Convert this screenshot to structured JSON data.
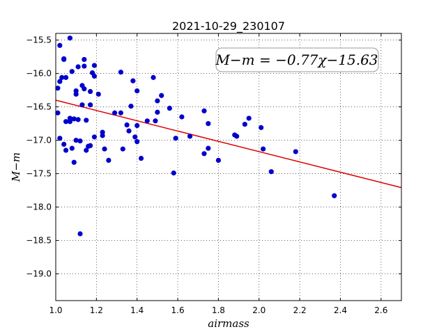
{
  "chart_data": {
    "type": "scatter",
    "title": "2021-10-29_230107",
    "xlabel": "airmass",
    "ylabel": "M−m",
    "xlim": [
      1.0,
      2.7
    ],
    "ylim": [
      -19.4,
      -15.4
    ],
    "y_inverted": true,
    "grid": true,
    "xticks": [
      "1.0",
      "1.2",
      "1.4",
      "1.6",
      "1.8",
      "2.0",
      "2.2",
      "2.4",
      "2.6"
    ],
    "xtick_values": [
      1.0,
      1.2,
      1.4,
      1.6,
      1.8,
      2.0,
      2.2,
      2.4,
      2.6
    ],
    "yticks": [
      "−15.5",
      "−16.0",
      "−16.5",
      "−17.0",
      "−17.5",
      "−18.0",
      "−18.5",
      "−19.0"
    ],
    "ytick_values": [
      -15.5,
      -16.0,
      -16.5,
      -17.0,
      -17.5,
      -18.0,
      -18.5,
      -19.0
    ],
    "annotation": "M−m = −0.77χ−15.63",
    "fit": {
      "slope": -0.77,
      "intercept": -15.63,
      "color": "#dd0000"
    },
    "point_color": "#0000cc",
    "points": [
      [
        1.02,
        -15.58
      ],
      [
        1.04,
        -15.78
      ],
      [
        1.07,
        -15.47
      ],
      [
        1.04,
        -15.79
      ],
      [
        1.02,
        -16.12
      ],
      [
        1.03,
        -16.06
      ],
      [
        1.05,
        -16.06
      ],
      [
        1.01,
        -16.22
      ],
      [
        1.08,
        -15.97
      ],
      [
        1.01,
        -16.59
      ],
      [
        1.1,
        -16.31
      ],
      [
        1.11,
        -15.9
      ],
      [
        1.1,
        -16.26
      ],
      [
        1.13,
        -16.18
      ],
      [
        1.14,
        -16.23
      ],
      [
        1.14,
        -15.89
      ],
      [
        1.14,
        -15.79
      ],
      [
        1.13,
        -16.47
      ],
      [
        1.17,
        -16.47
      ],
      [
        1.17,
        -16.27
      ],
      [
        1.18,
        -15.99
      ],
      [
        1.19,
        -16.04
      ],
      [
        1.19,
        -15.88
      ],
      [
        1.21,
        -16.31
      ],
      [
        1.05,
        -16.72
      ],
      [
        1.07,
        -16.67
      ],
      [
        1.07,
        -16.72
      ],
      [
        1.09,
        -16.68
      ],
      [
        1.11,
        -16.69
      ],
      [
        1.15,
        -16.7
      ],
      [
        1.02,
        -16.97
      ],
      [
        1.04,
        -17.06
      ],
      [
        1.05,
        -17.15
      ],
      [
        1.08,
        -17.12
      ],
      [
        1.09,
        -17.33
      ],
      [
        1.1,
        -17.0
      ],
      [
        1.12,
        -17.01
      ],
      [
        1.15,
        -17.15
      ],
      [
        1.16,
        -17.09
      ],
      [
        1.17,
        -17.08
      ],
      [
        1.19,
        -16.95
      ],
      [
        1.12,
        -18.4
      ],
      [
        1.23,
        -16.88
      ],
      [
        1.23,
        -16.93
      ],
      [
        1.24,
        -17.13
      ],
      [
        1.26,
        -17.3
      ],
      [
        1.29,
        -16.59
      ],
      [
        1.32,
        -16.59
      ],
      [
        1.32,
        -15.98
      ],
      [
        1.33,
        -17.13
      ],
      [
        1.35,
        -16.77
      ],
      [
        1.36,
        -16.86
      ],
      [
        1.37,
        -16.49
      ],
      [
        1.38,
        -16.11
      ],
      [
        1.39,
        -16.95
      ],
      [
        1.4,
        -16.78
      ],
      [
        1.4,
        -16.26
      ],
      [
        1.4,
        -17.02
      ],
      [
        1.42,
        -17.27
      ],
      [
        1.45,
        -16.71
      ],
      [
        1.48,
        -16.06
      ],
      [
        1.49,
        -16.71
      ],
      [
        1.5,
        -16.58
      ],
      [
        1.5,
        -16.41
      ],
      [
        1.52,
        -16.33
      ],
      [
        1.56,
        -16.52
      ],
      [
        1.58,
        -17.49
      ],
      [
        1.59,
        -16.97
      ],
      [
        1.62,
        -16.65
      ],
      [
        1.66,
        -16.94
      ],
      [
        1.73,
        -16.56
      ],
      [
        1.73,
        -17.2
      ],
      [
        1.75,
        -16.75
      ],
      [
        1.75,
        -17.12
      ],
      [
        1.8,
        -17.3
      ],
      [
        1.88,
        -16.92
      ],
      [
        1.89,
        -16.94
      ],
      [
        1.93,
        -16.76
      ],
      [
        1.95,
        -16.67
      ],
      [
        2.01,
        -16.81
      ],
      [
        2.02,
        -17.13
      ],
      [
        2.06,
        -17.47
      ],
      [
        2.18,
        -17.17
      ],
      [
        2.37,
        -17.83
      ]
    ]
  }
}
